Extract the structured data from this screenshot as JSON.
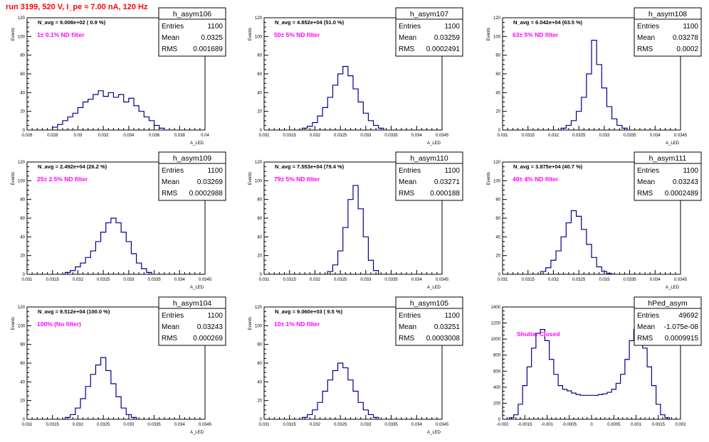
{
  "run_title": "run 3199,   520 V, I_pe ≈ 7.00 nA, 120 Hz",
  "colors": {
    "title": "#ff0000",
    "annotation": "#ff00ff",
    "histogram": "#00008b",
    "axis": "#000000"
  },
  "chart_data": [
    {
      "type": "histogram",
      "name": "h_asym106",
      "stats": {
        "entries": "1100",
        "mean": "0.0325",
        "rms": "0.001689"
      },
      "navg": "N_avg = 9.008e+02 ( 0.9 %)",
      "annotation": "1± 0.1% ND filter",
      "ylabel": "Events",
      "xlabel": "A_LED",
      "xlim": [
        0.026,
        0.04
      ],
      "ylim": [
        0,
        120
      ],
      "xticks": [
        "0.026",
        "0.028",
        "0.03",
        "0.032",
        "0.034",
        "0.036",
        "0.038",
        "0.04"
      ],
      "yticks": [
        "0",
        "20",
        "40",
        "60",
        "80",
        "100",
        "120"
      ],
      "x": [
        0.0282,
        0.0286,
        0.029,
        0.0294,
        0.0298,
        0.0302,
        0.0306,
        0.031,
        0.0314,
        0.0318,
        0.0322,
        0.0326,
        0.033,
        0.0334,
        0.0338,
        0.0342,
        0.0346,
        0.035,
        0.0354,
        0.0358,
        0.0362,
        0.0366
      ],
      "y": [
        3,
        6,
        10,
        14,
        18,
        24,
        30,
        33,
        38,
        42,
        36,
        40,
        35,
        38,
        30,
        34,
        26,
        20,
        14,
        10,
        5,
        2
      ]
    },
    {
      "type": "histogram",
      "name": "h_asym107",
      "stats": {
        "entries": "1100",
        "mean": "0.03259",
        "rms": "0.0002491"
      },
      "navg": "N_avg = 4.852e+04 (51.0 %)",
      "annotation": "50± 5% ND filter",
      "ylabel": "Events",
      "xlabel": "A_LED",
      "xlim": [
        0.031,
        0.0345
      ],
      "ylim": [
        0,
        120
      ],
      "xticks": [
        "0.031",
        "0.0315",
        "0.032",
        "0.0325",
        "0.033",
        "0.0335",
        "0.034",
        "0.0345"
      ],
      "yticks": [
        "0",
        "20",
        "40",
        "60",
        "80",
        "100",
        "120"
      ],
      "x": [
        0.0318,
        0.0319,
        0.032,
        0.0321,
        0.0322,
        0.0323,
        0.0324,
        0.0325,
        0.0326,
        0.0327,
        0.0328,
        0.0329,
        0.033,
        0.0331,
        0.0332,
        0.0333
      ],
      "y": [
        2,
        4,
        8,
        15,
        24,
        35,
        48,
        60,
        68,
        58,
        44,
        30,
        18,
        10,
        5,
        2
      ]
    },
    {
      "type": "histogram",
      "name": "h_asym108",
      "stats": {
        "entries": "1100",
        "mean": "0.03278",
        "rms": "0.0002"
      },
      "navg": "N_avg = 6.042e+04 (63.5 %)",
      "annotation": "63± 5% ND filter",
      "ylabel": "Events",
      "xlabel": "A_LED",
      "xlim": [
        0.031,
        0.0345
      ],
      "ylim": [
        0,
        120
      ],
      "xticks": [
        "0.031",
        "0.0315",
        "0.032",
        "0.0325",
        "0.033",
        "0.0335",
        "0.034",
        "0.0345"
      ],
      "yticks": [
        "0",
        "20",
        "40",
        "60",
        "80",
        "100",
        "120"
      ],
      "x": [
        0.0322,
        0.0323,
        0.0324,
        0.0325,
        0.0326,
        0.0327,
        0.0328,
        0.0329,
        0.033,
        0.0331,
        0.0332,
        0.0333,
        0.0334
      ],
      "y": [
        2,
        5,
        10,
        20,
        35,
        60,
        96,
        70,
        45,
        25,
        12,
        5,
        2
      ]
    },
    {
      "type": "histogram",
      "name": "h_asym109",
      "stats": {
        "entries": "1100",
        "mean": "0.03269",
        "rms": "0.0002988"
      },
      "navg": "N_avg = 2.492e+04 (26.2 %)",
      "annotation": "25± 2.5% ND filter",
      "ylabel": "Events",
      "xlabel": "A_LED",
      "xlim": [
        0.031,
        0.0345
      ],
      "ylim": [
        0,
        120
      ],
      "xticks": [
        "0.031",
        "0.0315",
        "0.032",
        "0.0325",
        "0.033",
        "0.0335",
        "0.034",
        "0.0345"
      ],
      "yticks": [
        "0",
        "20",
        "40",
        "60",
        "80",
        "100",
        "120"
      ],
      "x": [
        0.0318,
        0.0319,
        0.032,
        0.0321,
        0.0322,
        0.0323,
        0.0324,
        0.0325,
        0.0326,
        0.0327,
        0.0328,
        0.0329,
        0.033,
        0.0331,
        0.0332,
        0.0333,
        0.0334
      ],
      "y": [
        2,
        4,
        8,
        12,
        18,
        25,
        35,
        45,
        55,
        60,
        55,
        45,
        35,
        22,
        12,
        6,
        2
      ]
    },
    {
      "type": "histogram",
      "name": "h_asym110",
      "stats": {
        "entries": "1100",
        "mean": "0.03271",
        "rms": "0.000188"
      },
      "navg": "N_avg = 7.553e+04 (79.4 %)",
      "annotation": "79± 5% ND filter",
      "ylabel": "Events",
      "xlabel": "A_LED",
      "xlim": [
        0.031,
        0.0345
      ],
      "ylim": [
        0,
        120
      ],
      "xticks": [
        "0.031",
        "0.0315",
        "0.032",
        "0.0325",
        "0.033",
        "0.0335",
        "0.034",
        "0.0345"
      ],
      "yticks": [
        "0",
        "20",
        "40",
        "60",
        "80",
        "100",
        "120"
      ],
      "x": [
        0.0323,
        0.0324,
        0.0325,
        0.0326,
        0.0327,
        0.0328,
        0.0329,
        0.033,
        0.0331,
        0.0332
      ],
      "y": [
        3,
        10,
        25,
        50,
        80,
        95,
        70,
        40,
        15,
        4
      ]
    },
    {
      "type": "histogram",
      "name": "h_asym111",
      "stats": {
        "entries": "1100",
        "mean": "0.03243",
        "rms": "0.0002489"
      },
      "navg": "N_avg = 3.875e+04 (40.7 %)",
      "annotation": "40± 4% ND filter",
      "ylabel": "Events",
      "xlabel": "A_LED",
      "xlim": [
        0.031,
        0.0345
      ],
      "ylim": [
        0,
        120
      ],
      "xticks": [
        "0.031",
        "0.0315",
        "0.032",
        "0.0325",
        "0.033",
        "0.0335",
        "0.034",
        "0.0345"
      ],
      "yticks": [
        "0",
        "20",
        "40",
        "60",
        "80",
        "100",
        "120"
      ],
      "x": [
        0.0318,
        0.0319,
        0.032,
        0.0321,
        0.0322,
        0.0323,
        0.0324,
        0.0325,
        0.0326,
        0.0327,
        0.0328,
        0.0329,
        0.033,
        0.0331
      ],
      "y": [
        3,
        7,
        15,
        25,
        40,
        55,
        68,
        62,
        48,
        32,
        18,
        8,
        3,
        1
      ]
    },
    {
      "type": "histogram",
      "name": "h_asym104",
      "stats": {
        "entries": "1100",
        "mean": "0.03243",
        "rms": "0.000269"
      },
      "navg": "N_avg = 9.512e+04 (100.0 %)",
      "annotation": "100% (No filter)",
      "ylabel": "Events",
      "xlabel": "A_LED",
      "xlim": [
        0.031,
        0.0345
      ],
      "ylim": [
        0,
        120
      ],
      "xticks": [
        "0.031",
        "0.0315",
        "0.032",
        "0.0325",
        "0.033",
        "0.0335",
        "0.034",
        "0.0345"
      ],
      "yticks": [
        "0",
        "20",
        "40",
        "60",
        "80",
        "100",
        "120"
      ],
      "x": [
        0.0318,
        0.0319,
        0.032,
        0.0321,
        0.0322,
        0.0323,
        0.0324,
        0.0325,
        0.0326,
        0.0327,
        0.0328,
        0.0329,
        0.033,
        0.0331
      ],
      "y": [
        2,
        5,
        12,
        22,
        35,
        48,
        58,
        66,
        52,
        38,
        24,
        12,
        5,
        2
      ]
    },
    {
      "type": "histogram",
      "name": "h_asym105",
      "stats": {
        "entries": "1100",
        "mean": "0.03251",
        "rms": "0.0003008"
      },
      "navg": "N_avg = 9.060e+03 ( 9.5 %)",
      "annotation": "10± 1% ND filter",
      "ylabel": "Events",
      "xlabel": "A_LED",
      "xlim": [
        0.031,
        0.0345
      ],
      "ylim": [
        0,
        120
      ],
      "xticks": [
        "0.031",
        "0.0315",
        "0.032",
        "0.0325",
        "0.033",
        "0.0335",
        "0.034",
        "0.0345"
      ],
      "yticks": [
        "0",
        "20",
        "40",
        "60",
        "80",
        "100",
        "120"
      ],
      "x": [
        0.0318,
        0.0319,
        0.032,
        0.0321,
        0.0322,
        0.0323,
        0.0324,
        0.0325,
        0.0326,
        0.0327,
        0.0328,
        0.0329,
        0.033,
        0.0331,
        0.0332
      ],
      "y": [
        2,
        5,
        10,
        18,
        30,
        42,
        52,
        60,
        55,
        42,
        30,
        18,
        10,
        5,
        2
      ]
    },
    {
      "type": "histogram",
      "name": "hPed_asym",
      "stats": {
        "entries": "49692",
        "mean": "-1.075e-08",
        "rms": "0.0009915"
      },
      "navg": "",
      "annotation": "Shutter Closed",
      "ylabel": "",
      "xlabel": "",
      "xlim": [
        -0.002,
        0.002
      ],
      "ylim": [
        0,
        1500
      ],
      "xticks": [
        "-0.002",
        "-0.0015",
        "-0.001",
        "-0.0005",
        "0",
        "0.0005",
        "0.001",
        "0.0015",
        "0.002"
      ],
      "yticks": [
        "0",
        "200",
        "400",
        "600",
        "800",
        "1000",
        "1200",
        "1400"
      ],
      "x": [
        -0.0018,
        -0.0017,
        -0.0016,
        -0.0015,
        -0.0014,
        -0.0013,
        -0.0012,
        -0.0011,
        -0.001,
        -0.0009,
        -0.0008,
        -0.0007,
        -0.0006,
        -0.0005,
        -0.0004,
        -0.0003,
        -0.0002,
        -0.0001,
        0.0,
        0.0001,
        0.0002,
        0.0003,
        0.0004,
        0.0005,
        0.0006,
        0.0007,
        0.0008,
        0.0009,
        0.001,
        0.0011,
        0.0012,
        0.0013,
        0.0014,
        0.0015,
        0.0016,
        0.0017
      ],
      "y": [
        20,
        60,
        200,
        450,
        700,
        950,
        1150,
        1200,
        1050,
        800,
        600,
        450,
        400,
        380,
        350,
        330,
        320,
        320,
        320,
        320,
        330,
        340,
        360,
        400,
        480,
        600,
        800,
        1050,
        1200,
        1150,
        950,
        700,
        450,
        200,
        60,
        20
      ]
    }
  ]
}
